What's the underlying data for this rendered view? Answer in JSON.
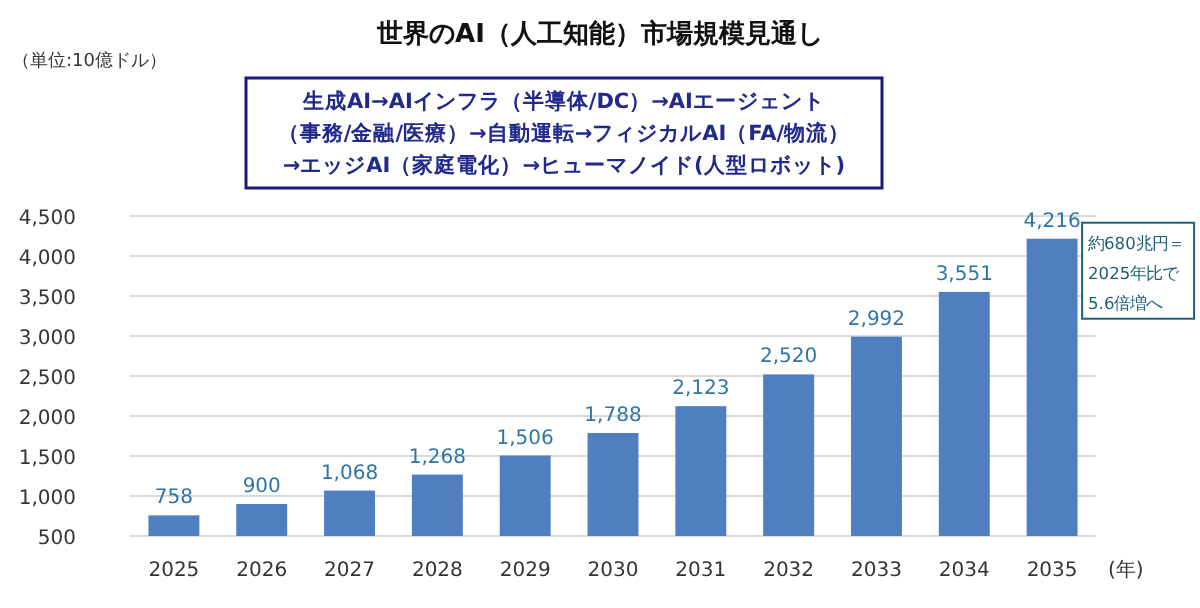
{
  "chart_data": {
    "type": "bar",
    "title": "世界のAI（人工知能）市場規模見通し",
    "xlabel": "(年)",
    "categories": [
      "2025",
      "2026",
      "2027",
      "2028",
      "2029",
      "2030",
      "2031",
      "2032",
      "2033",
      "2034",
      "2035"
    ],
    "values": [
      758,
      900,
      1068,
      1268,
      1506,
      1788,
      2123,
      2520,
      2992,
      3551,
      4216
    ],
    "value_labels": [
      "758",
      "900",
      "1,068",
      "1,268",
      "1,506",
      "1,788",
      "2,123",
      "2,520",
      "2,992",
      "3,551",
      "4,216"
    ],
    "color": "#4f7fbf",
    "grid": "y",
    "ylim": [
      500,
      4500
    ],
    "yticks": [
      {
        "value": 500,
        "label": "500"
      },
      {
        "value": 1000,
        "label": "1,000"
      },
      {
        "value": 1500,
        "label": "1,500"
      },
      {
        "value": 2000,
        "label": "2,000"
      },
      {
        "value": 2500,
        "label": "2,500"
      },
      {
        "value": 3000,
        "label": "3,000"
      },
      {
        "value": 3500,
        "label": "3,500"
      },
      {
        "value": 4000,
        "label": "4,000"
      },
      {
        "value": 4500,
        "label": "4,500"
      }
    ],
    "annotations": [
      "（単位:10億ドル）",
      "生成AI→AIインフラ（半導体/DC）→AIエージェント",
      "（事務/金融/医療）→自動運転→フィジカルAI（FA/物流）",
      "→エッジAI（家庭電化）→ヒューマノイド(人型ロボット)",
      {
        "text": "約680兆円＝\n2025年比で\n5.6倍増へ",
        "x": "2035",
        "y": 4216
      }
    ]
  }
}
